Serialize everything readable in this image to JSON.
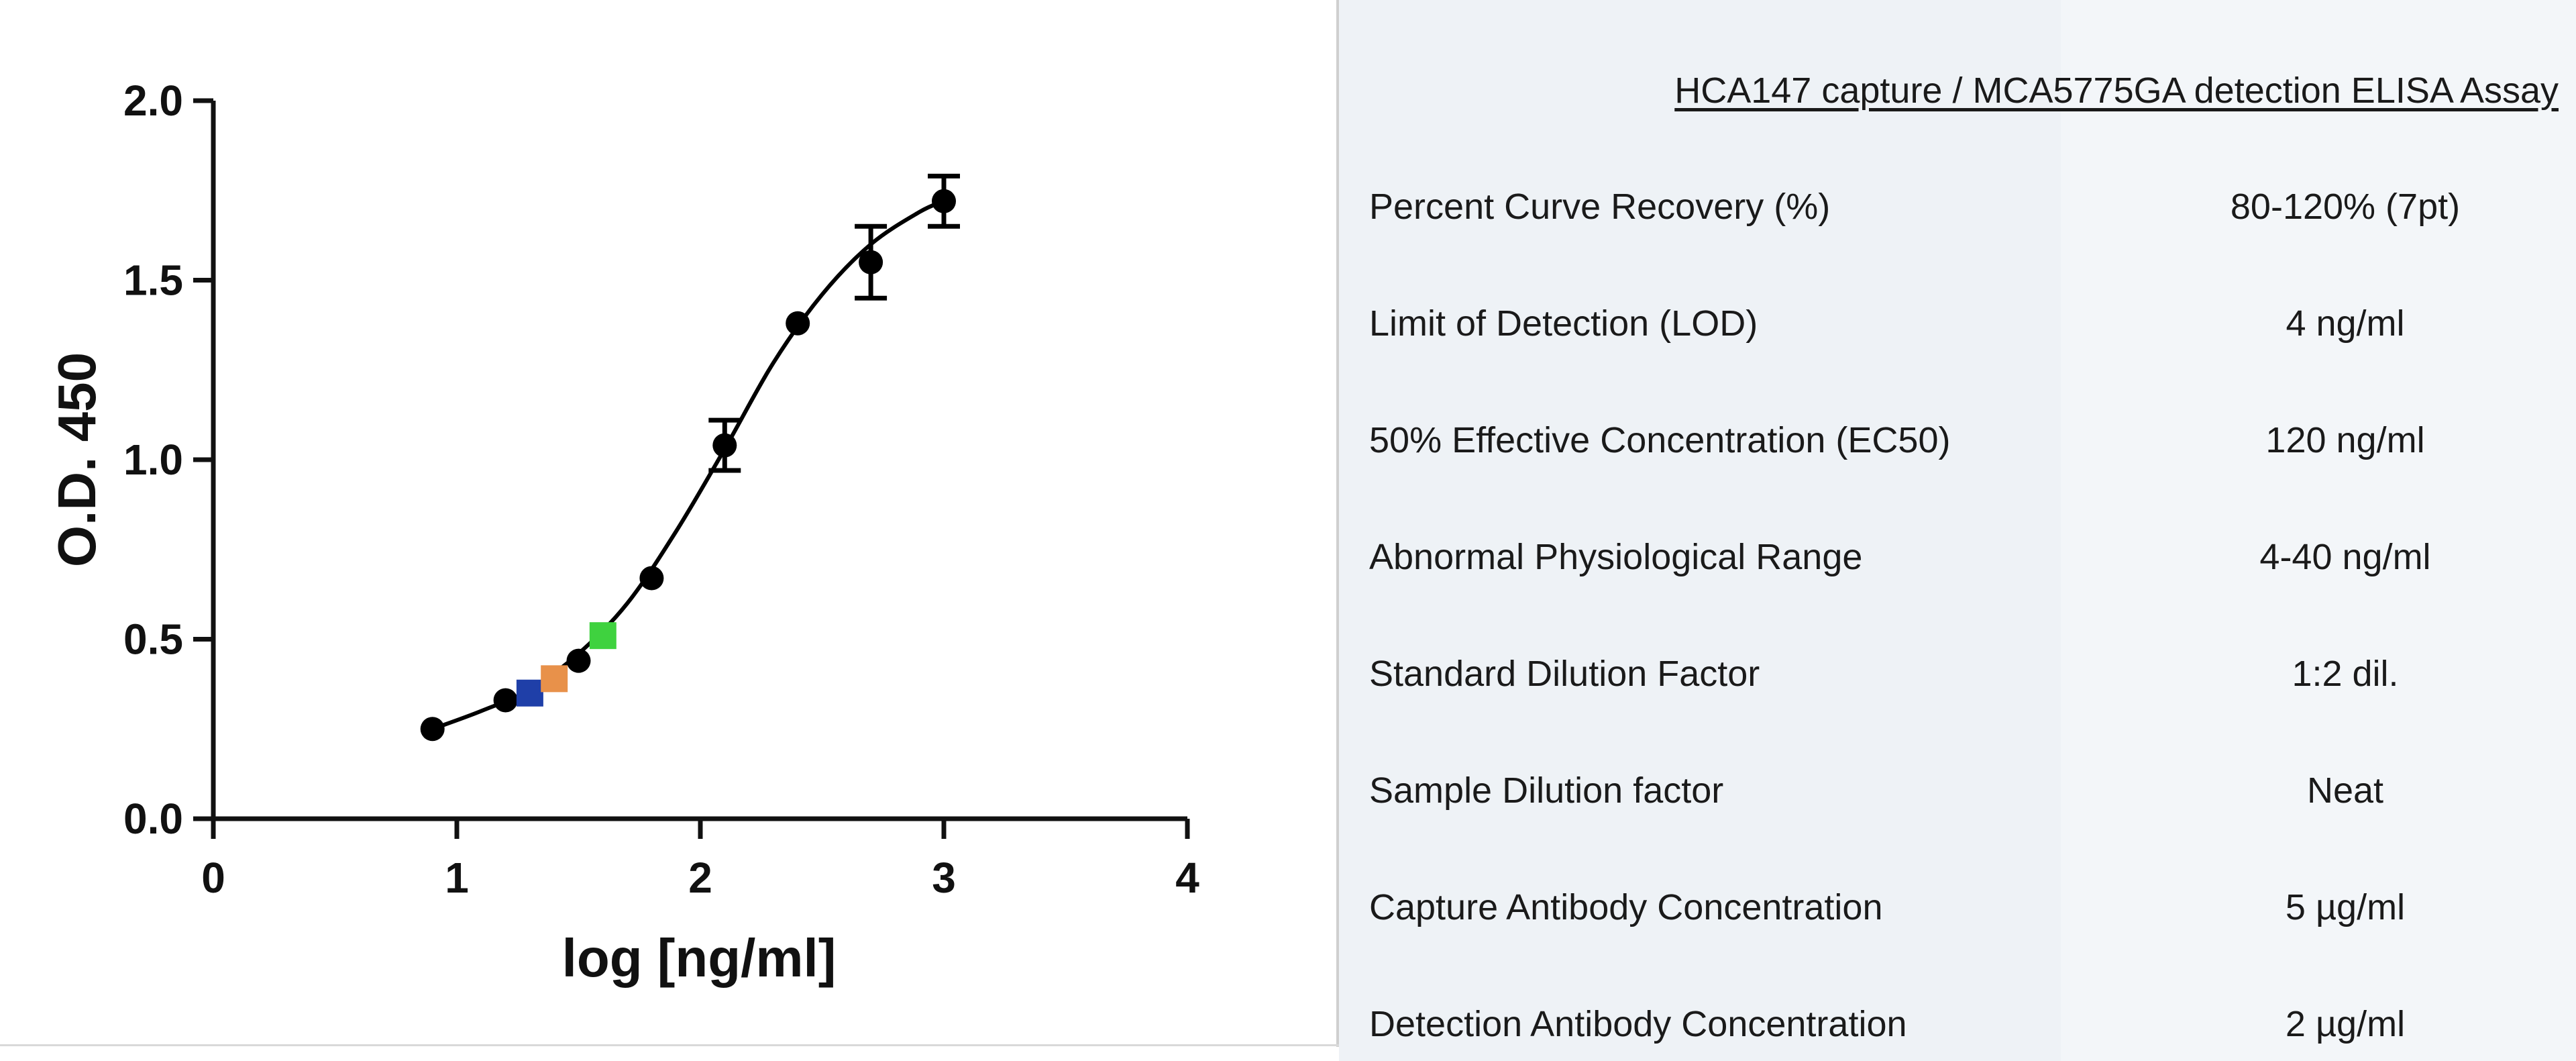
{
  "chart_data": {
    "type": "scatter",
    "xlabel": "log [ng/ml]",
    "ylabel": "O.D. 450",
    "xlim": [
      0,
      4
    ],
    "ylim": [
      0,
      2.0
    ],
    "x_ticks": [
      "0",
      "1",
      "2",
      "3",
      "4"
    ],
    "y_ticks": [
      "0.0",
      "0.5",
      "1.0",
      "1.5",
      "2.0"
    ],
    "grid": false,
    "standards": {
      "x": [
        0.9,
        1.2,
        1.5,
        1.8,
        2.1,
        2.4,
        2.7,
        3.0
      ],
      "y": [
        0.25,
        0.33,
        0.44,
        0.67,
        1.04,
        1.38,
        1.55,
        1.72
      ],
      "error": [
        0,
        0,
        0,
        0,
        0.07,
        0,
        0.1,
        0.07
      ],
      "color": "#000000"
    },
    "samples": [
      {
        "x": 1.3,
        "y": 0.35,
        "color": "#1f3fa8"
      },
      {
        "x": 1.4,
        "y": 0.39,
        "color": "#e8914a"
      },
      {
        "x": 1.6,
        "y": 0.51,
        "color": "#3fd23f"
      }
    ],
    "fit_curve": {
      "x": [
        0.9,
        1.1,
        1.3,
        1.5,
        1.7,
        1.9,
        2.1,
        2.3,
        2.5,
        2.7,
        2.9,
        3.0
      ],
      "y": [
        0.25,
        0.3,
        0.36,
        0.46,
        0.6,
        0.8,
        1.03,
        1.27,
        1.46,
        1.6,
        1.69,
        1.72
      ],
      "color": "#000000"
    }
  },
  "table": {
    "title": "HCA147 capture / MCA5775GA detection ELISA Assay",
    "rows": [
      {
        "label": "Percent Curve Recovery (%)",
        "value": "80-120% (7pt)"
      },
      {
        "label": "Limit of Detection (LOD)",
        "value": "4 ng/ml"
      },
      {
        "label": "50% Effective Concentration (EC50)",
        "value": "120 ng/ml"
      },
      {
        "label": "Abnormal Physiological Range",
        "value": "4-40 ng/ml"
      },
      {
        "label": "Standard Dilution Factor",
        "value": "1:2 dil."
      },
      {
        "label": "Sample Dilution factor",
        "value": "Neat"
      },
      {
        "label": "Capture Antibody Concentration",
        "value": "5 µg/ml"
      },
      {
        "label": "Detection Antibody Concentration",
        "value": "2 µg/ml"
      }
    ]
  }
}
